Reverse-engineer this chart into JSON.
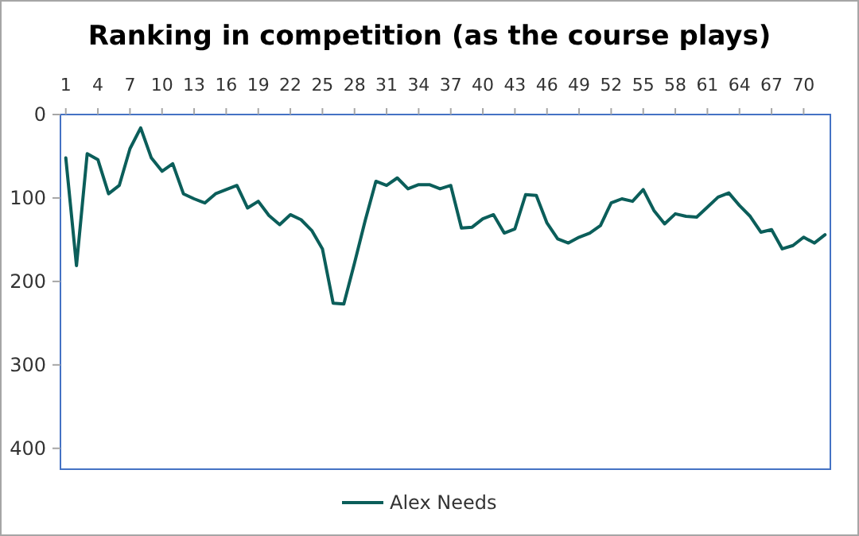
{
  "chart_data": {
    "type": "line",
    "title": "Ranking in competition (as the course plays)",
    "x": [
      1,
      2,
      3,
      4,
      5,
      6,
      7,
      8,
      9,
      10,
      11,
      12,
      13,
      14,
      15,
      16,
      17,
      18,
      19,
      20,
      21,
      22,
      23,
      24,
      25,
      26,
      27,
      28,
      29,
      30,
      31,
      32,
      33,
      34,
      35,
      36,
      37,
      38,
      39,
      40,
      41,
      42,
      43,
      44,
      45,
      46,
      47,
      48,
      49,
      50,
      51,
      52,
      53,
      54,
      55,
      56,
      57,
      58,
      59,
      60,
      61,
      62,
      63,
      64,
      65,
      66,
      67,
      68,
      69,
      70,
      71,
      72
    ],
    "series": [
      {
        "name": "Alex Needs",
        "color": "#0b5e5a",
        "values": [
          52,
          181,
          47,
          54,
          95,
          85,
          41,
          16,
          52,
          68,
          59,
          95,
          101,
          106,
          95,
          90,
          85,
          112,
          104,
          121,
          132,
          120,
          126,
          139,
          161,
          226,
          227,
          178,
          127,
          80,
          85,
          76,
          89,
          84,
          84,
          89,
          85,
          136,
          135,
          125,
          120,
          142,
          137,
          96,
          97,
          130,
          149,
          154,
          147,
          142,
          133,
          106,
          101,
          104,
          90,
          115,
          131,
          119,
          122,
          123,
          111,
          99,
          94,
          109,
          122,
          141,
          138,
          161,
          157,
          147,
          154,
          144
        ]
      }
    ],
    "xlim": [
      0.5,
      72.5
    ],
    "xticks": [
      1,
      4,
      7,
      10,
      13,
      16,
      19,
      22,
      25,
      28,
      31,
      34,
      37,
      40,
      43,
      46,
      49,
      52,
      55,
      58,
      61,
      64,
      67,
      70
    ],
    "ylim": [
      425,
      0
    ],
    "yticks": [
      0,
      100,
      200,
      300,
      400
    ],
    "grid": false,
    "legend": "bottom",
    "marker": "none",
    "line_style": "solid"
  }
}
